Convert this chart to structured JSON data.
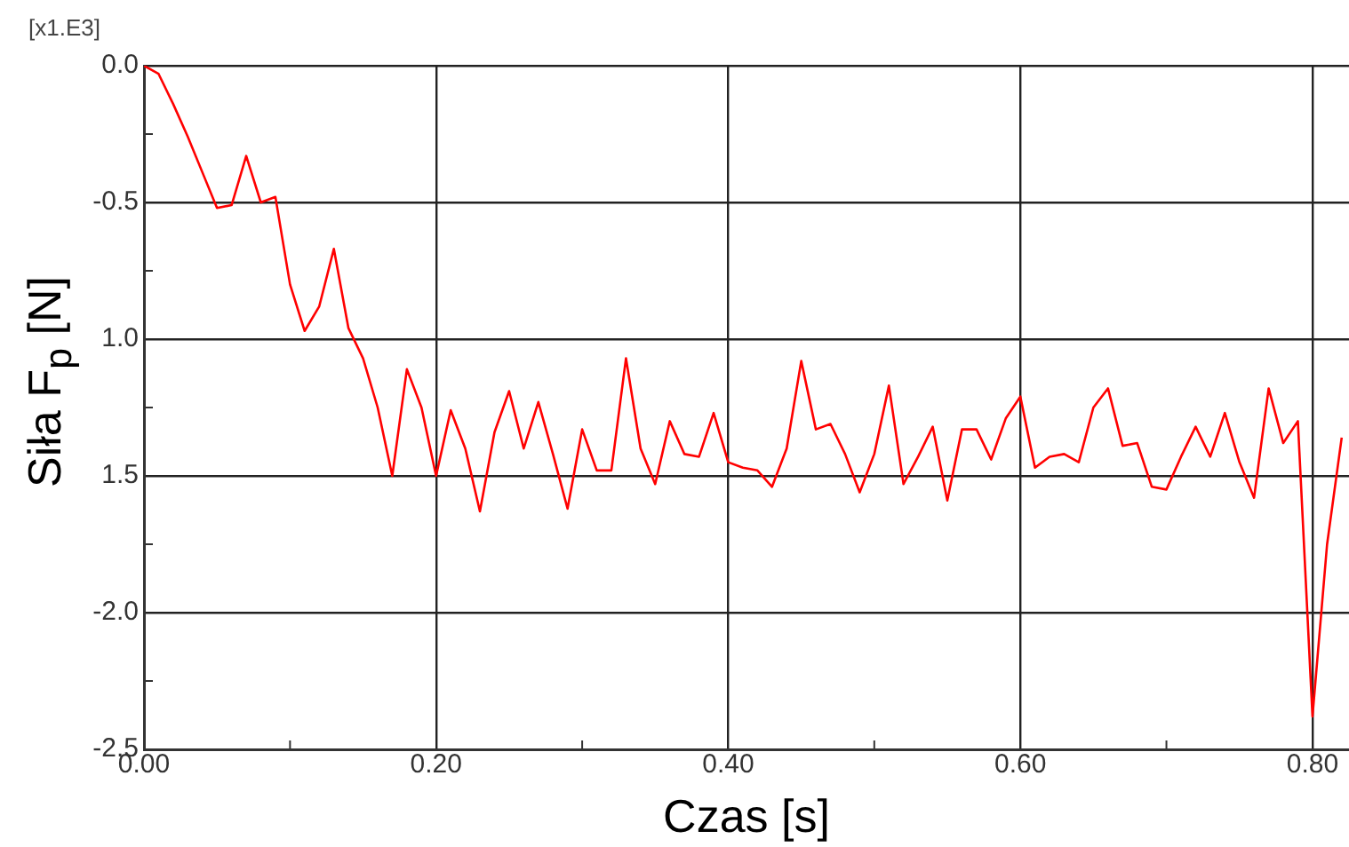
{
  "chart_data": {
    "type": "line",
    "xlabel": "Czas [s]",
    "ylabel": "Siła F$_{p}$ [N]",
    "annotations": [
      "[x1.E3]"
    ],
    "x": [
      0,
      0.01,
      0.02,
      0.03,
      0.04,
      0.05,
      0.06,
      0.07,
      0.08,
      0.09,
      0.1,
      0.11,
      0.12,
      0.13,
      0.14,
      0.15,
      0.16,
      0.17,
      0.18,
      0.19,
      0.2,
      0.21,
      0.22,
      0.23,
      0.24,
      0.25,
      0.26,
      0.27,
      0.28,
      0.29,
      0.3,
      0.31,
      0.32,
      0.33,
      0.34,
      0.35,
      0.36,
      0.37,
      0.38,
      0.39,
      0.4,
      0.41,
      0.42,
      0.43,
      0.44,
      0.45,
      0.46,
      0.47,
      0.48,
      0.49,
      0.5,
      0.51,
      0.52,
      0.53,
      0.54,
      0.55,
      0.56,
      0.57,
      0.58,
      0.59,
      0.6,
      0.61,
      0.62,
      0.63,
      0.64,
      0.65,
      0.66,
      0.67,
      0.68,
      0.69,
      0.7,
      0.71,
      0.72,
      0.73,
      0.74,
      0.75,
      0.76,
      0.77,
      0.78,
      0.79,
      0.8,
      0.81,
      0.82
    ],
    "series": [
      {
        "color": "#ff0000",
        "values": [
          0,
          -0.03,
          -0.14,
          -0.26,
          -0.39,
          -0.52,
          -0.51,
          -0.33,
          -0.5,
          -0.48,
          -0.8,
          -0.97,
          -0.88,
          -0.67,
          -0.96,
          -1.07,
          -1.25,
          -1.5,
          -1.11,
          -1.25,
          -1.5,
          -1.26,
          -1.4,
          -1.63,
          -1.34,
          -1.19,
          -1.4,
          -1.23,
          -1.42,
          -1.62,
          -1.33,
          -1.48,
          -1.48,
          -1.07,
          -1.4,
          -1.53,
          -1.3,
          -1.42,
          -1.43,
          -1.27,
          -1.45,
          -1.47,
          -1.48,
          -1.54,
          -1.4,
          -1.08,
          -1.33,
          -1.31,
          -1.42,
          -1.56,
          -1.42,
          -1.17,
          -1.53,
          -1.43,
          -1.32,
          -1.59,
          -1.33,
          -1.33,
          -1.44,
          -1.29,
          -1.21,
          -1.47,
          -1.43,
          -1.42,
          -1.45,
          -1.25,
          -1.18,
          -1.39,
          -1.38,
          -1.54,
          -1.55,
          -1.43,
          -1.32,
          -1.43,
          -1.27,
          -1.45,
          -1.58,
          -1.18,
          -1.38,
          -1.3,
          -2.38,
          -1.75,
          -1.36
        ]
      }
    ],
    "xlim": [
      0,
      0.825
    ],
    "xticks": [
      {
        "value": 0,
        "label": "0.00"
      },
      {
        "value": 0.1,
        "label": null
      },
      {
        "value": 0.2,
        "label": "0.20"
      },
      {
        "value": 0.3,
        "label": null
      },
      {
        "value": 0.4,
        "label": "0.40"
      },
      {
        "value": 0.5,
        "label": null
      },
      {
        "value": 0.6,
        "label": "0.60"
      },
      {
        "value": 0.7,
        "label": null
      },
      {
        "value": 0.8,
        "label": "0.80"
      }
    ],
    "ylim": [
      -2.5,
      0
    ],
    "yticks": [
      {
        "value": -2.5,
        "label": "-2.5"
      },
      {
        "value": -2.25,
        "label": null
      },
      {
        "value": -2,
        "label": "-2.0"
      },
      {
        "value": -1.75,
        "label": null
      },
      {
        "value": -1.5,
        "label": "1.5"
      },
      {
        "value": -1.25,
        "label": null
      },
      {
        "value": -1,
        "label": "1.0"
      },
      {
        "value": -0.75,
        "label": null
      },
      {
        "value": -0.5,
        "label": "-0.5"
      },
      {
        "value": -0.25,
        "label": null
      },
      {
        "value": 0,
        "label": "0.0"
      }
    ],
    "grid": true,
    "marker": "none",
    "line_style": "solid"
  }
}
